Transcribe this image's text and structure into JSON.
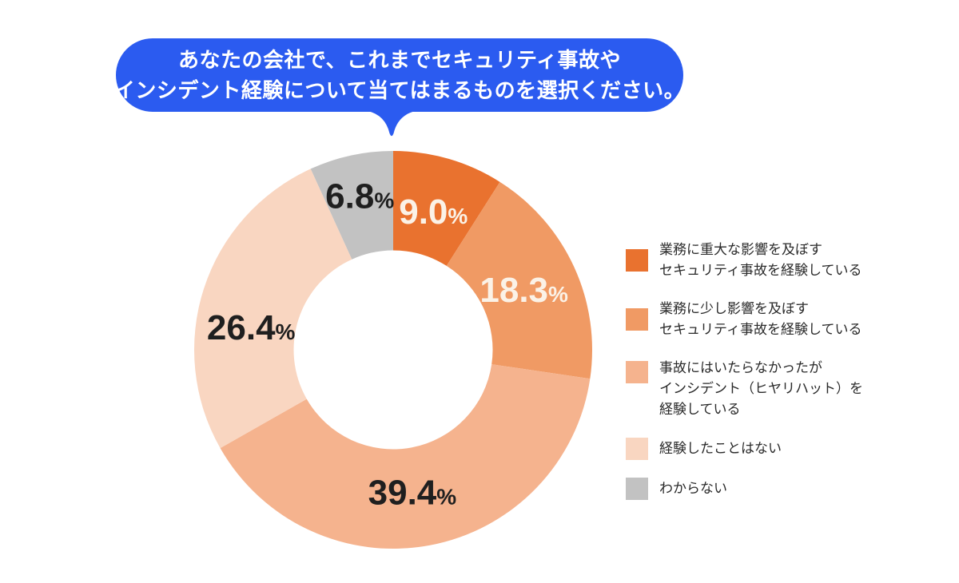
{
  "colors": {
    "bubble_bg": "#2B5BF0",
    "bubble_text": "#ffffff",
    "background": "#ffffff",
    "dark_label": "#1F1F1F",
    "light_label": "#FBF2E7"
  },
  "question": {
    "line1": "あなたの会社で、これまでセキュリティ事故や",
    "line2": "インシデント経験について当てはまるものを選択ください。"
  },
  "chart_data": {
    "type": "pie",
    "subtype": "donut",
    "title": "あなたの会社で、これまでセキュリティ事故やインシデント経験について当てはまるものを選択ください。",
    "title_lines": [
      "あなたの会社で、これまでセキュリティ事故や",
      "インシデント経験について当てはまるものを選択ください。"
    ],
    "unit": "%",
    "start_angle_deg": 0,
    "direction": "clockwise",
    "inner_radius_ratio": 0.5,
    "legend_position": "right",
    "series": [
      {
        "label_lines": [
          "業務に重大な影響を及ぼす",
          "セキュリティ事故を経験している"
        ],
        "value": 9.0,
        "display": "9.0%",
        "color": "#E9722F",
        "label_color": "#FBF2E7"
      },
      {
        "label_lines": [
          "業務に少し影響を及ぼす",
          "セキュリティ事故を経験している"
        ],
        "value": 18.3,
        "display": "18.3%",
        "color": "#F09A64",
        "label_color": "#FBF2E7"
      },
      {
        "label_lines": [
          "事故にはいたらなかったが",
          "インシデント（ヒヤリハット）を",
          "経験している"
        ],
        "value": 39.4,
        "display": "39.4%",
        "color": "#F5B38E",
        "label_color": "#1F1F1F",
        "label_offset_deg": 3
      },
      {
        "label_lines": [
          "経験したことはない"
        ],
        "value": 26.4,
        "display": "26.4%",
        "color": "#F9D6C1",
        "label_color": "#1F1F1F",
        "label_offset_deg": -9
      },
      {
        "label_lines": [
          "わからない"
        ],
        "value": 6.8,
        "display": "6.8%",
        "color": "#C2C2C2",
        "label_color": "#1F1F1F",
        "label_radius": 197
      }
    ]
  }
}
